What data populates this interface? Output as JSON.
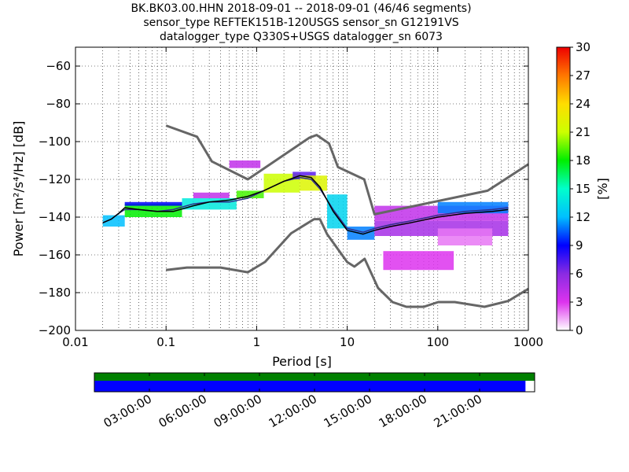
{
  "title_lines": [
    "BK.BK03.00.HHN   2018-09-01 -- 2018-09-01  (46/46 segments)",
    "sensor_type REFTEK151B-120USGS sensor_sn G12191VS",
    "datalogger_type Q330S+USGS datalogger_sn 6073"
  ],
  "colors": {
    "noise_model": "#666666",
    "mode_line": "#000000",
    "mean_line": "#2e2e8a",
    "data_bar": "#008000",
    "gap_bar": "#0000ff"
  },
  "chart_data": [
    {
      "type": "heatmap",
      "title": "",
      "xlabel": "Period [s]",
      "ylabel": "Power [m²/s⁴/Hz] [dB]",
      "x_scale": "log",
      "xlim": [
        0.01,
        1000
      ],
      "ylim": [
        -200,
        -50
      ],
      "x_ticks": [
        0.01,
        0.1,
        1,
        10,
        100,
        1000
      ],
      "x_tick_labels": [
        "0.01",
        "0.1",
        "1",
        "10",
        "100",
        "1000"
      ],
      "y_ticks": [
        -200,
        -180,
        -160,
        -140,
        -120,
        -100,
        -80,
        -60
      ],
      "y_tick_labels": [
        "−200",
        "−180",
        "−160",
        "−140",
        "−120",
        "−100",
        "−80",
        "−60"
      ],
      "grid": true,
      "colorbar": {
        "label": "[%]",
        "min": 0,
        "max": 30,
        "ticks": [
          0,
          3,
          6,
          9,
          12,
          15,
          18,
          21,
          24,
          27,
          30
        ],
        "tick_labels": [
          "0",
          "3",
          "6",
          "9",
          "12",
          "15",
          "18",
          "21",
          "24",
          "27",
          "30"
        ]
      },
      "noise_models": {
        "high": {
          "x": [
            0.1,
            0.22,
            0.32,
            0.8,
            3.8,
            4.6,
            6.3,
            7.9,
            15.4,
            20,
            354.8,
            1000
          ],
          "y": [
            -91.5,
            -97.4,
            -110.5,
            -120,
            -98,
            -96.5,
            -101,
            -113.5,
            -120,
            -138.5,
            -126,
            -112
          ]
        },
        "low": {
          "x": [
            0.1,
            0.17,
            0.4,
            0.8,
            1.24,
            2.4,
            4.3,
            5,
            6,
            10,
            12,
            15.6,
            21.9,
            31.6,
            45,
            70,
            101,
            154,
            328,
            600,
            1000
          ],
          "y": [
            -168,
            -166.7,
            -166.7,
            -169.2,
            -163.7,
            -148.6,
            -141.1,
            -141.1,
            -149,
            -163.8,
            -166.2,
            -162.1,
            -177.5,
            -185,
            -187.5,
            -187.5,
            -185,
            -185,
            -187.5,
            -184.4,
            -178
          ]
        }
      },
      "mode": {
        "x": [
          0.02,
          0.025,
          0.03,
          0.035,
          0.05,
          0.08,
          0.12,
          0.2,
          0.3,
          0.5,
          0.8,
          1.2,
          2,
          3,
          4,
          5,
          7,
          10,
          15,
          20,
          30,
          50,
          100,
          200,
          400,
          600
        ],
        "y": [
          -143,
          -141,
          -138,
          -135,
          -136,
          -137,
          -137,
          -134,
          -132,
          -131,
          -129,
          -126,
          -121,
          -118,
          -119,
          -124,
          -137,
          -147,
          -149,
          -147,
          -145,
          -143,
          -140,
          -138,
          -137,
          -136
        ]
      },
      "mean": {
        "x": [
          0.02,
          0.025,
          0.03,
          0.035,
          0.05,
          0.08,
          0.12,
          0.2,
          0.3,
          0.5,
          0.8,
          1.2,
          2,
          3,
          4,
          5,
          7,
          10,
          15,
          20,
          30,
          50,
          100,
          200,
          400,
          600
        ],
        "y": [
          -143,
          -141,
          -138,
          -136,
          -136,
          -137,
          -136,
          -133,
          -132,
          -132,
          -130,
          -126,
          -121,
          -119,
          -120,
          -125,
          -136,
          -146,
          -148,
          -146,
          -144,
          -142,
          -139,
          -137,
          -136,
          -135
        ]
      },
      "distribution": [
        {
          "x": [
            0.02,
            0.035
          ],
          "y": [
            -145,
            -139
          ],
          "pct": 12
        },
        {
          "x": [
            0.035,
            0.15
          ],
          "y": [
            -140,
            -133
          ],
          "pct": 18
        },
        {
          "x": [
            0.035,
            0.15
          ],
          "y": [
            -134,
            -132
          ],
          "pct": 9
        },
        {
          "x": [
            0.15,
            0.6
          ],
          "y": [
            -136,
            -130
          ],
          "pct": 14
        },
        {
          "x": [
            0.2,
            0.5
          ],
          "y": [
            -130,
            -127
          ],
          "pct": 4
        },
        {
          "x": [
            0.6,
            1.2
          ],
          "y": [
            -130,
            -126
          ],
          "pct": 19
        },
        {
          "x": [
            1.2,
            3
          ],
          "y": [
            -127,
            -117
          ],
          "pct": 21
        },
        {
          "x": [
            2.5,
            4.5
          ],
          "y": [
            -120,
            -116
          ],
          "pct": 7
        },
        {
          "x": [
            0.5,
            1.1
          ],
          "y": [
            -114,
            -110
          ],
          "pct": 4
        },
        {
          "x": [
            3,
            6
          ],
          "y": [
            -126,
            -118
          ],
          "pct": 22
        },
        {
          "x": [
            6,
            10
          ],
          "y": [
            -146,
            -128
          ],
          "pct": 13
        },
        {
          "x": [
            10,
            20
          ],
          "y": [
            -152,
            -145
          ],
          "pct": 11
        },
        {
          "x": [
            20,
            600
          ],
          "y": [
            -150,
            -142
          ],
          "pct": 5
        },
        {
          "x": [
            20,
            600
          ],
          "y": [
            -142,
            -134
          ],
          "pct": 4
        },
        {
          "x": [
            100,
            600
          ],
          "y": [
            -138,
            -132
          ],
          "pct": 11
        },
        {
          "x": [
            25,
            150
          ],
          "y": [
            -168,
            -158
          ],
          "pct": 3
        },
        {
          "x": [
            100,
            400
          ],
          "y": [
            -155,
            -146
          ],
          "pct": 2
        }
      ]
    },
    {
      "type": "bar",
      "title": "",
      "xlabel": "",
      "ylabel": "",
      "time_tick_labels": [
        "03:00:00",
        "06:00:00",
        "09:00:00",
        "12:00:00",
        "15:00:00",
        "18:00:00",
        "21:00:00"
      ],
      "time_tick_hours": [
        3,
        6,
        9,
        12,
        15,
        18,
        21
      ],
      "xlim_hours": [
        0,
        24
      ],
      "data_coverage": [
        [
          0,
          24
        ]
      ],
      "segment_coverage": [
        [
          0,
          23.5
        ]
      ]
    }
  ]
}
